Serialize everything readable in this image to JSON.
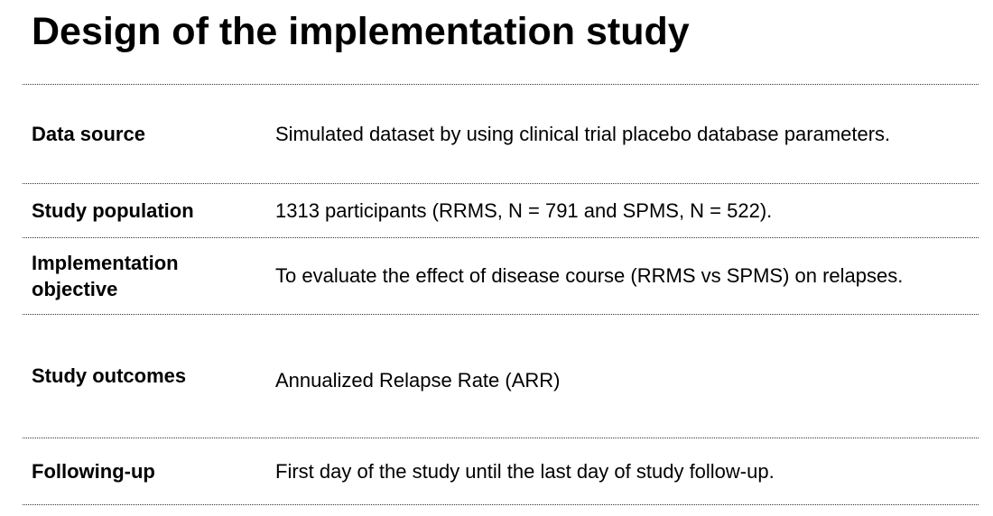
{
  "page_title": "Design of the implementation study",
  "rows": [
    {
      "label": "Data source",
      "value": "Simulated dataset by using clinical trial placebo database parameters."
    },
    {
      "label": "Study population",
      "value": "1313 participants (RRMS, N = 791 and SPMS, N = 522)."
    },
    {
      "label": "Implementation objective",
      "value": "To evaluate the effect of disease course (RRMS vs SPMS) on relapses."
    },
    {
      "label": "Study outcomes",
      "value": "Annualized Relapse Rate (ARR)"
    },
    {
      "label": "Following-up",
      "value": "First day of the study until the last day of study follow-up."
    }
  ]
}
